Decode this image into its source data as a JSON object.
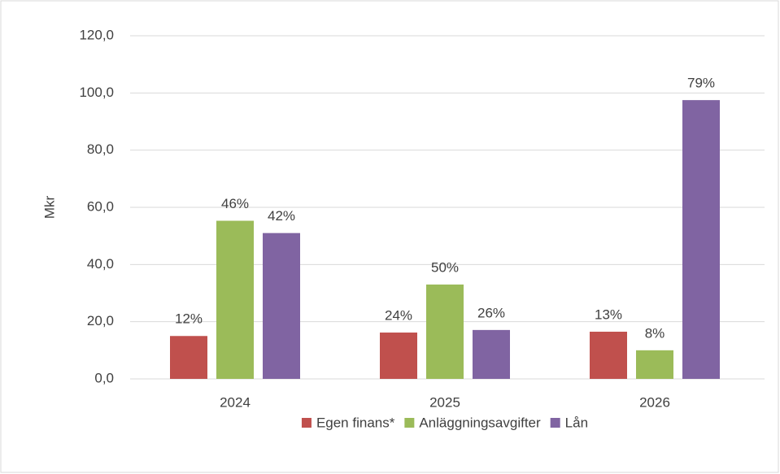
{
  "chart_data": {
    "type": "bar",
    "ylabel": "Mkr",
    "categories": [
      "2024",
      "2025",
      "2026"
    ],
    "series": [
      {
        "name": "Egen finans*",
        "color": "#c0504d",
        "values": [
          15.0,
          16.2,
          16.5
        ],
        "labels": [
          "12%",
          "24%",
          "13%"
        ]
      },
      {
        "name": "Anläggningsavgifter",
        "color": "#9bbb59",
        "values": [
          55.3,
          33.0,
          10.0
        ],
        "labels": [
          "46%",
          "50%",
          "8%"
        ]
      },
      {
        "name": "Lån",
        "color": "#8064a2",
        "values": [
          51.0,
          17.1,
          97.5
        ],
        "labels": [
          "42%",
          "26%",
          "79%"
        ]
      }
    ],
    "ylim": [
      0,
      120
    ],
    "yticks": [
      {
        "value": 0,
        "label": "0,0"
      },
      {
        "value": 20,
        "label": "20,0"
      },
      {
        "value": 40,
        "label": "40,0"
      },
      {
        "value": 60,
        "label": "60,0"
      },
      {
        "value": 80,
        "label": "80,0"
      },
      {
        "value": 100,
        "label": "100,0"
      },
      {
        "value": 120,
        "label": "120,0"
      }
    ],
    "grid": true,
    "legend": "bottom"
  }
}
